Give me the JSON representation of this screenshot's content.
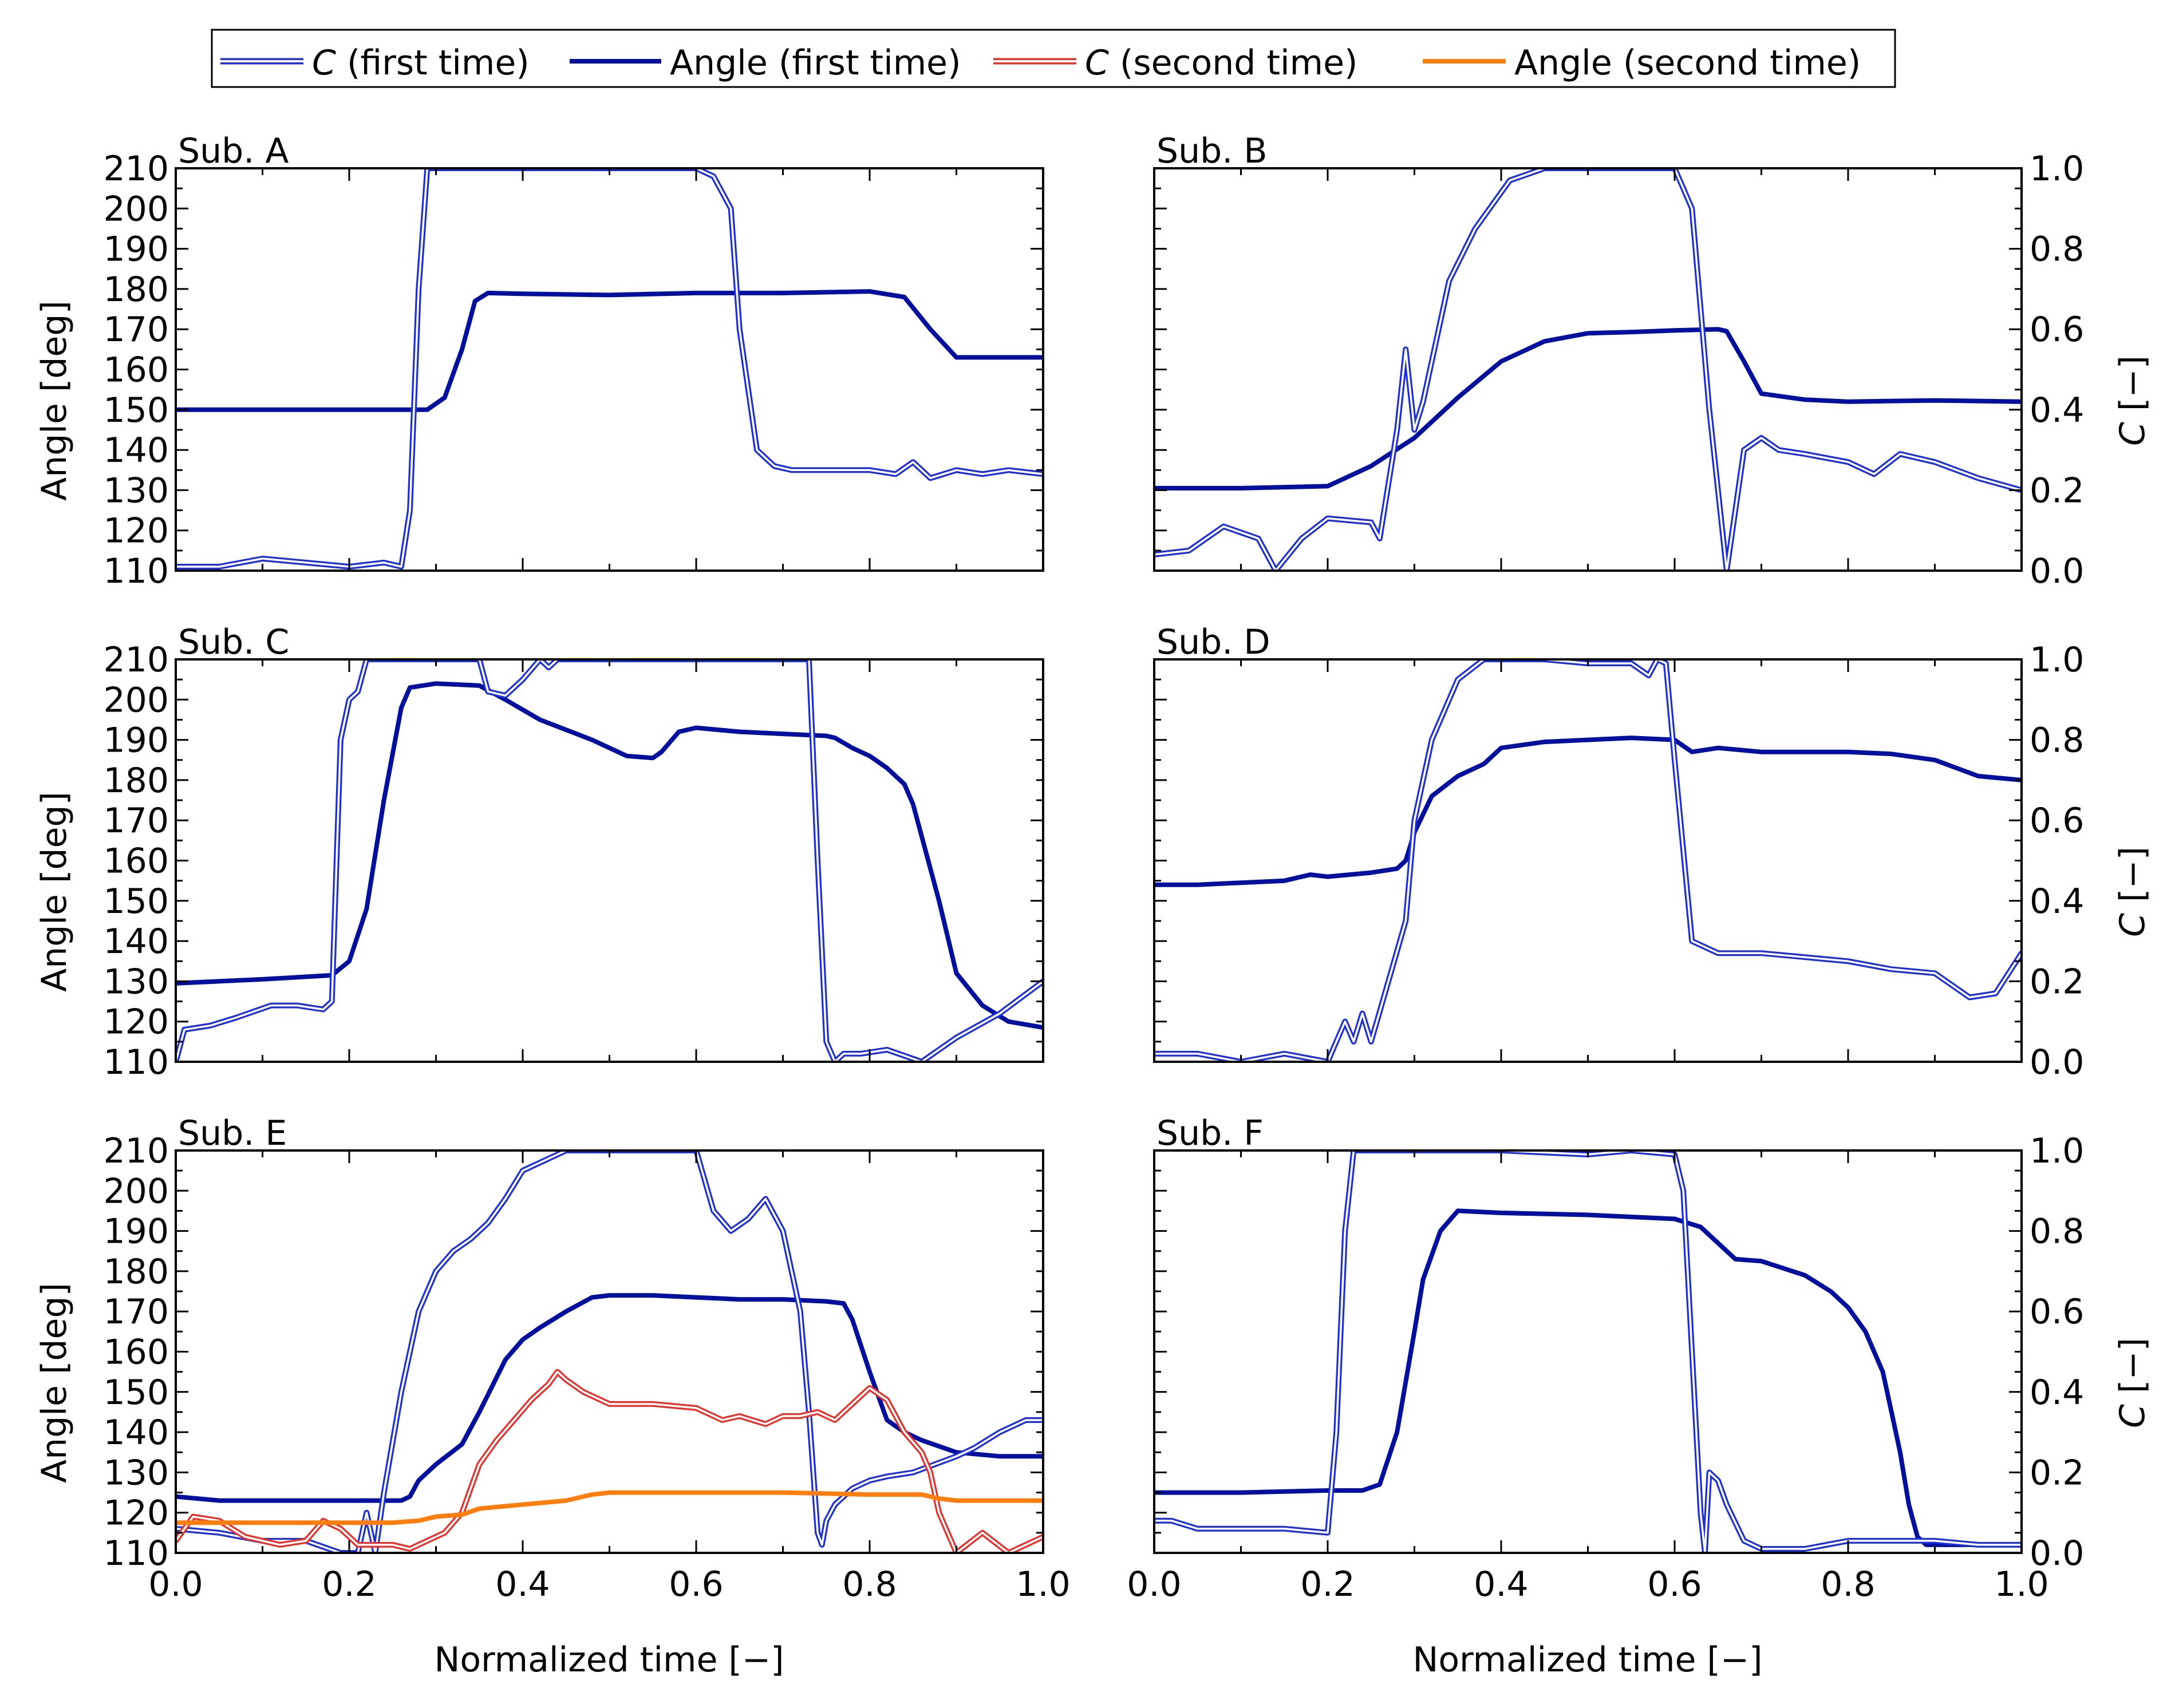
{
  "legend": {
    "entries": [
      {
        "label": "C (first time)",
        "italic_prefix": "C",
        "rest": " (first time)",
        "color": "#1e2fd6",
        "style": "double"
      },
      {
        "label": "Angle (first time)",
        "italic_prefix": "",
        "rest": "Angle (first time)",
        "color": "#00109c",
        "style": "solid"
      },
      {
        "label": "C (second time)",
        "italic_prefix": "C",
        "rest": " (second time)",
        "color": "#e8302a",
        "style": "double"
      },
      {
        "label": "Angle (second time)",
        "italic_prefix": "",
        "rest": "Angle (second time)",
        "color": "#ff7f0e",
        "style": "solid"
      }
    ]
  },
  "axes_text": {
    "left_ylabel": "Angle [deg]",
    "right_ylabel_italic": "C",
    "right_ylabel_rest": " [−]",
    "xlabel": "Normalized time [−]"
  },
  "chart_data": [
    {
      "type": "line",
      "title": "Sub. A",
      "xlim": [
        0,
        1
      ],
      "ylim": [
        110,
        210
      ],
      "y2lim": [
        0,
        1
      ],
      "series": [
        {
          "name": "Angle (first time)",
          "axis": "left",
          "x": [
            0,
            0.1,
            0.2,
            0.29,
            0.31,
            0.33,
            0.345,
            0.36,
            0.4,
            0.5,
            0.6,
            0.7,
            0.8,
            0.84,
            0.87,
            0.9,
            0.95,
            1
          ],
          "y": [
            150,
            150,
            150,
            150,
            153,
            165,
            177,
            179,
            178.8,
            178.5,
            179,
            179,
            179.4,
            178,
            170,
            163,
            163,
            163
          ]
        },
        {
          "name": "C (first time)",
          "axis": "right",
          "x": [
            0,
            0.05,
            0.1,
            0.15,
            0.2,
            0.24,
            0.26,
            0.27,
            0.28,
            0.29,
            0.6,
            0.62,
            0.64,
            0.65,
            0.67,
            0.69,
            0.71,
            0.74,
            0.77,
            0.8,
            0.83,
            0.85,
            0.87,
            0.9,
            0.93,
            0.96,
            1
          ],
          "y": [
            0.01,
            0.01,
            0.03,
            0.02,
            0.01,
            0.02,
            0.01,
            0.15,
            0.7,
            1,
            1,
            0.98,
            0.9,
            0.6,
            0.3,
            0.26,
            0.25,
            0.25,
            0.25,
            0.25,
            0.24,
            0.27,
            0.23,
            0.25,
            0.24,
            0.25,
            0.24
          ]
        }
      ]
    },
    {
      "type": "line",
      "title": "Sub. B",
      "xlim": [
        0,
        1
      ],
      "ylim": [
        110,
        210
      ],
      "y2lim": [
        0,
        1
      ],
      "series": [
        {
          "name": "Angle (first time)",
          "axis": "left",
          "x": [
            0,
            0.1,
            0.2,
            0.25,
            0.3,
            0.35,
            0.4,
            0.45,
            0.5,
            0.55,
            0.6,
            0.65,
            0.66,
            0.68,
            0.7,
            0.75,
            0.8,
            0.9,
            1
          ],
          "y": [
            130.5,
            130.5,
            131,
            136,
            143,
            153,
            162,
            167,
            169,
            169.3,
            169.7,
            170,
            169.5,
            162,
            154,
            152.5,
            152,
            152.3,
            152
          ]
        },
        {
          "name": "C (first time)",
          "axis": "right",
          "x": [
            0,
            0.04,
            0.08,
            0.12,
            0.14,
            0.17,
            0.2,
            0.25,
            0.26,
            0.28,
            0.29,
            0.3,
            0.31,
            0.34,
            0.37,
            0.41,
            0.45,
            0.5,
            0.55,
            0.6,
            0.62,
            0.64,
            0.66,
            0.67,
            0.68,
            0.7,
            0.72,
            0.75,
            0.8,
            0.83,
            0.86,
            0.9,
            0.95,
            1
          ],
          "y": [
            0.04,
            0.05,
            0.11,
            0.08,
            0.0,
            0.08,
            0.13,
            0.12,
            0.08,
            0.35,
            0.55,
            0.35,
            0.42,
            0.72,
            0.85,
            0.97,
            1,
            1,
            1,
            1,
            0.9,
            0.4,
            0.0,
            0.15,
            0.3,
            0.33,
            0.3,
            0.29,
            0.27,
            0.24,
            0.29,
            0.27,
            0.23,
            0.2
          ]
        }
      ]
    },
    {
      "type": "line",
      "title": "Sub. C",
      "xlim": [
        0,
        1
      ],
      "ylim": [
        110,
        210
      ],
      "y2lim": [
        0,
        1
      ],
      "series": [
        {
          "name": "Angle (first time)",
          "axis": "left",
          "x": [
            0,
            0.05,
            0.1,
            0.18,
            0.2,
            0.22,
            0.24,
            0.26,
            0.27,
            0.3,
            0.35,
            0.38,
            0.42,
            0.48,
            0.52,
            0.55,
            0.56,
            0.58,
            0.6,
            0.65,
            0.7,
            0.75,
            0.76,
            0.78,
            0.8,
            0.82,
            0.84,
            0.85,
            0.88,
            0.9,
            0.93,
            0.96,
            1
          ],
          "y": [
            129.5,
            130,
            130.5,
            131.5,
            135,
            148,
            175,
            198,
            203,
            204,
            203.5,
            200,
            195,
            190,
            186,
            185.5,
            187,
            192,
            193,
            192,
            191.5,
            191,
            190.5,
            188,
            186,
            183,
            179,
            174,
            150,
            132,
            124,
            120,
            118.5
          ]
        },
        {
          "name": "C (first time)",
          "axis": "right",
          "x": [
            0,
            0.01,
            0.04,
            0.07,
            0.11,
            0.14,
            0.17,
            0.18,
            0.19,
            0.2,
            0.21,
            0.22,
            0.23,
            0.24,
            0.3,
            0.35,
            0.36,
            0.38,
            0.4,
            0.42,
            0.43,
            0.44,
            0.46,
            0.7,
            0.73,
            0.74,
            0.75,
            0.76,
            0.77,
            0.79,
            0.82,
            0.86,
            0.9,
            0.95,
            1
          ],
          "y": [
            0.0,
            0.08,
            0.09,
            0.11,
            0.14,
            0.14,
            0.13,
            0.15,
            0.8,
            0.9,
            0.92,
            1,
            1,
            1,
            1,
            1,
            0.92,
            0.91,
            0.95,
            1,
            0.98,
            1,
            1,
            1,
            1,
            0.5,
            0.05,
            0.0,
            0.02,
            0.02,
            0.03,
            0.0,
            0.06,
            0.12,
            0.2
          ]
        }
      ]
    },
    {
      "type": "line",
      "title": "Sub. D",
      "xlim": [
        0,
        1
      ],
      "ylim": [
        110,
        210
      ],
      "y2lim": [
        0,
        1
      ],
      "series": [
        {
          "name": "Angle (first time)",
          "axis": "left",
          "x": [
            0,
            0.05,
            0.1,
            0.15,
            0.18,
            0.2,
            0.25,
            0.28,
            0.29,
            0.3,
            0.32,
            0.35,
            0.38,
            0.4,
            0.45,
            0.5,
            0.55,
            0.6,
            0.62,
            0.65,
            0.7,
            0.8,
            0.85,
            0.9,
            0.95,
            1
          ],
          "y": [
            154,
            154,
            154.5,
            155,
            156.5,
            156,
            157,
            158,
            160,
            167,
            176,
            181,
            184,
            188,
            189.5,
            190,
            190.5,
            190,
            187,
            188,
            187,
            187,
            186.5,
            185,
            181,
            180
          ]
        },
        {
          "name": "C (first time)",
          "axis": "right",
          "x": [
            0,
            0.05,
            0.1,
            0.15,
            0.2,
            0.22,
            0.23,
            0.24,
            0.25,
            0.27,
            0.29,
            0.3,
            0.32,
            0.35,
            0.38,
            0.4,
            0.45,
            0.5,
            0.55,
            0.57,
            0.58,
            0.59,
            0.6,
            0.62,
            0.65,
            0.7,
            0.75,
            0.8,
            0.85,
            0.9,
            0.94,
            0.97,
            1
          ],
          "y": [
            0.02,
            0.02,
            0.0,
            0.02,
            0.0,
            0.1,
            0.05,
            0.12,
            0.05,
            0.2,
            0.35,
            0.6,
            0.8,
            0.95,
            1,
            1,
            1,
            0.99,
            0.99,
            0.96,
            1,
            0.99,
            0.75,
            0.3,
            0.27,
            0.27,
            0.26,
            0.25,
            0.23,
            0.22,
            0.16,
            0.17,
            0.27
          ]
        }
      ]
    },
    {
      "type": "line",
      "title": "Sub. E",
      "xlim": [
        0,
        1
      ],
      "ylim": [
        110,
        210
      ],
      "y2lim": [
        0,
        1
      ],
      "series": [
        {
          "name": "Angle (first time)",
          "axis": "left",
          "x": [
            0,
            0.05,
            0.1,
            0.2,
            0.25,
            0.26,
            0.27,
            0.28,
            0.3,
            0.33,
            0.35,
            0.38,
            0.4,
            0.42,
            0.45,
            0.48,
            0.5,
            0.55,
            0.6,
            0.65,
            0.7,
            0.75,
            0.77,
            0.78,
            0.8,
            0.82,
            0.84,
            0.86,
            0.9,
            0.95,
            1
          ],
          "y": [
            124,
            123,
            123,
            123,
            123,
            123,
            124,
            128,
            132,
            137,
            145,
            158,
            163,
            166,
            170,
            173.5,
            174,
            174,
            173.5,
            173,
            173,
            172.5,
            172,
            168,
            155,
            143,
            140,
            138,
            135,
            134,
            134
          ]
        },
        {
          "name": "C (first time)",
          "axis": "right",
          "x": [
            0,
            0.05,
            0.1,
            0.15,
            0.19,
            0.21,
            0.22,
            0.23,
            0.24,
            0.26,
            0.28,
            0.3,
            0.32,
            0.34,
            0.36,
            0.38,
            0.4,
            0.42,
            0.45,
            0.5,
            0.56,
            0.58,
            0.6,
            0.62,
            0.64,
            0.66,
            0.68,
            0.7,
            0.72,
            0.73,
            0.74,
            0.745,
            0.75,
            0.76,
            0.78,
            0.8,
            0.82,
            0.85,
            0.9,
            0.92,
            0.95,
            0.98,
            1
          ],
          "y": [
            0.06,
            0.05,
            0.03,
            0.03,
            0.0,
            0.0,
            0.1,
            0.0,
            0.15,
            0.4,
            0.6,
            0.7,
            0.75,
            0.78,
            0.82,
            0.88,
            0.95,
            0.97,
            1,
            1,
            1,
            1,
            1,
            0.85,
            0.8,
            0.83,
            0.88,
            0.8,
            0.6,
            0.35,
            0.05,
            0.02,
            0.08,
            0.12,
            0.16,
            0.18,
            0.19,
            0.2,
            0.24,
            0.26,
            0.3,
            0.33,
            0.33
          ]
        },
        {
          "name": "C (second time)",
          "axis": "right",
          "x": [
            0,
            0.02,
            0.05,
            0.08,
            0.12,
            0.15,
            0.17,
            0.19,
            0.21,
            0.23,
            0.25,
            0.27,
            0.29,
            0.31,
            0.33,
            0.35,
            0.37,
            0.39,
            0.41,
            0.43,
            0.44,
            0.45,
            0.47,
            0.5,
            0.55,
            0.6,
            0.63,
            0.65,
            0.68,
            0.7,
            0.72,
            0.74,
            0.76,
            0.78,
            0.8,
            0.82,
            0.84,
            0.86,
            0.87,
            0.88,
            0.9,
            0.93,
            0.96,
            1
          ],
          "y": [
            0.03,
            0.09,
            0.08,
            0.04,
            0.02,
            0.03,
            0.08,
            0.06,
            0.02,
            0.02,
            0.02,
            0.01,
            0.03,
            0.05,
            0.1,
            0.22,
            0.28,
            0.33,
            0.38,
            0.42,
            0.45,
            0.43,
            0.4,
            0.37,
            0.37,
            0.36,
            0.33,
            0.34,
            0.32,
            0.34,
            0.34,
            0.35,
            0.33,
            0.37,
            0.41,
            0.38,
            0.3,
            0.25,
            0.2,
            0.1,
            0.0,
            0.05,
            0.0,
            0.04
          ]
        },
        {
          "name": "Angle (second time)",
          "axis": "left",
          "x": [
            0,
            0.1,
            0.2,
            0.25,
            0.28,
            0.3,
            0.33,
            0.35,
            0.4,
            0.45,
            0.48,
            0.5,
            0.6,
            0.7,
            0.8,
            0.86,
            0.88,
            0.9,
            0.95,
            1
          ],
          "y": [
            117.5,
            117.5,
            117.5,
            117.5,
            118,
            119,
            119.5,
            121,
            122,
            123,
            124.5,
            125,
            125,
            125,
            124.5,
            124.5,
            123.5,
            123,
            123,
            123
          ]
        }
      ]
    },
    {
      "type": "line",
      "title": "Sub. F",
      "xlim": [
        0,
        1
      ],
      "ylim": [
        110,
        210
      ],
      "y2lim": [
        0,
        1
      ],
      "series": [
        {
          "name": "Angle (first time)",
          "axis": "left",
          "x": [
            0,
            0.1,
            0.2,
            0.24,
            0.26,
            0.28,
            0.3,
            0.31,
            0.33,
            0.35,
            0.4,
            0.5,
            0.55,
            0.6,
            0.63,
            0.65,
            0.67,
            0.7,
            0.75,
            0.78,
            0.8,
            0.82,
            0.84,
            0.85,
            0.86,
            0.87,
            0.88,
            0.89,
            0.9,
            0.95,
            1
          ],
          "y": [
            125,
            125,
            125.5,
            125.5,
            127,
            140,
            165,
            178,
            190,
            195,
            194.5,
            194,
            193.5,
            193,
            191,
            187,
            183,
            182.5,
            179,
            175,
            171,
            165,
            155,
            145,
            135,
            122,
            114,
            112,
            112,
            112,
            112
          ]
        },
        {
          "name": "C (first time)",
          "axis": "right",
          "x": [
            0,
            0.02,
            0.05,
            0.1,
            0.15,
            0.2,
            0.21,
            0.22,
            0.23,
            0.24,
            0.3,
            0.4,
            0.5,
            0.55,
            0.6,
            0.61,
            0.62,
            0.63,
            0.635,
            0.64,
            0.65,
            0.66,
            0.68,
            0.7,
            0.75,
            0.8,
            0.85,
            0.9,
            0.95,
            1
          ],
          "y": [
            0.08,
            0.08,
            0.06,
            0.06,
            0.06,
            0.05,
            0.3,
            0.8,
            1,
            1,
            1,
            1,
            0.99,
            1,
            0.99,
            0.9,
            0.5,
            0.1,
            0.0,
            0.2,
            0.18,
            0.12,
            0.03,
            0.01,
            0.01,
            0.03,
            0.03,
            0.03,
            0.02,
            0.02
          ]
        }
      ]
    }
  ]
}
